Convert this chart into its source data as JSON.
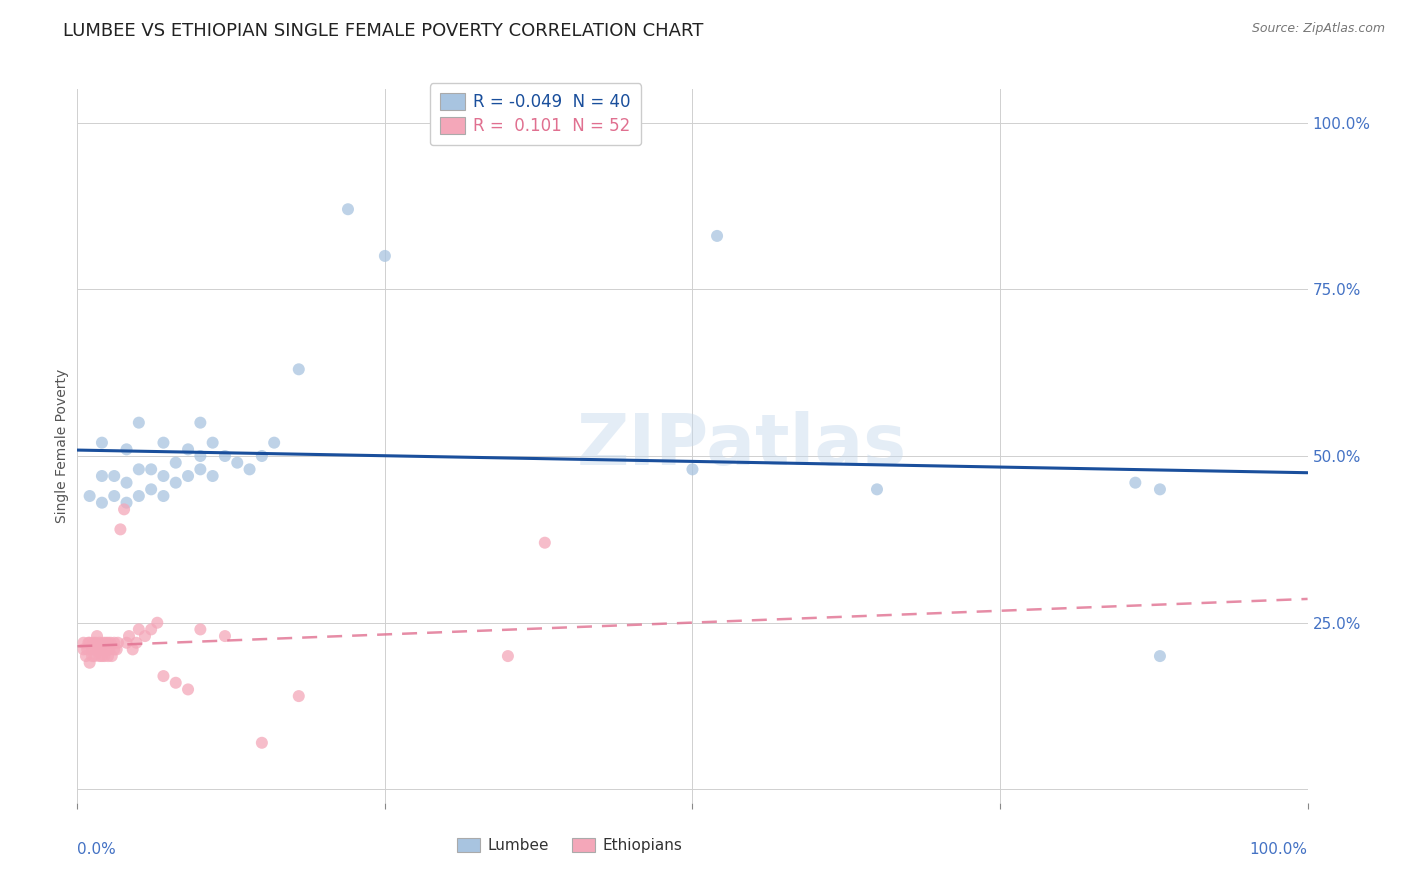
{
  "title": "LUMBEE VS ETHIOPIAN SINGLE FEMALE POVERTY CORRELATION CHART",
  "source": "Source: ZipAtlas.com",
  "ylabel": "Single Female Poverty",
  "xlim": [
    0.0,
    1.0
  ],
  "ylim": [
    -0.02,
    1.05
  ],
  "lumbee_color": "#a8c4e0",
  "ethiopian_color": "#f4a7b9",
  "lumbee_line_color": "#1a4f9c",
  "ethiopian_line_color": "#e07090",
  "background_color": "#ffffff",
  "watermark_text": "ZIPatlas",
  "legend_R_lumbee": "-0.049",
  "legend_N_lumbee": "40",
  "legend_R_ethiopian": "0.101",
  "legend_N_ethiopian": "52",
  "lumbee_x": [
    0.01,
    0.02,
    0.02,
    0.02,
    0.03,
    0.03,
    0.04,
    0.04,
    0.04,
    0.05,
    0.05,
    0.05,
    0.06,
    0.06,
    0.07,
    0.07,
    0.07,
    0.08,
    0.08,
    0.09,
    0.09,
    0.1,
    0.1,
    0.1,
    0.11,
    0.11,
    0.12,
    0.13,
    0.14,
    0.15,
    0.16,
    0.18,
    0.22,
    0.25,
    0.5,
    0.52,
    0.65,
    0.86,
    0.88,
    0.88
  ],
  "lumbee_y": [
    0.44,
    0.43,
    0.47,
    0.52,
    0.44,
    0.47,
    0.43,
    0.46,
    0.51,
    0.44,
    0.48,
    0.55,
    0.45,
    0.48,
    0.44,
    0.47,
    0.52,
    0.46,
    0.49,
    0.47,
    0.51,
    0.48,
    0.5,
    0.55,
    0.47,
    0.52,
    0.5,
    0.49,
    0.48,
    0.5,
    0.52,
    0.63,
    0.87,
    0.8,
    0.48,
    0.83,
    0.45,
    0.46,
    0.45,
    0.2
  ],
  "ethiopian_x": [
    0.005,
    0.005,
    0.007,
    0.008,
    0.009,
    0.01,
    0.01,
    0.012,
    0.012,
    0.013,
    0.014,
    0.015,
    0.015,
    0.016,
    0.017,
    0.018,
    0.018,
    0.019,
    0.02,
    0.02,
    0.021,
    0.022,
    0.022,
    0.023,
    0.025,
    0.025,
    0.026,
    0.027,
    0.028,
    0.03,
    0.03,
    0.032,
    0.033,
    0.035,
    0.038,
    0.04,
    0.042,
    0.045,
    0.048,
    0.05,
    0.055,
    0.06,
    0.065,
    0.07,
    0.08,
    0.09,
    0.1,
    0.12,
    0.15,
    0.18,
    0.35,
    0.38
  ],
  "ethiopian_y": [
    0.21,
    0.22,
    0.2,
    0.21,
    0.22,
    0.19,
    0.22,
    0.2,
    0.21,
    0.22,
    0.2,
    0.21,
    0.22,
    0.23,
    0.21,
    0.22,
    0.2,
    0.21,
    0.2,
    0.21,
    0.22,
    0.2,
    0.21,
    0.22,
    0.2,
    0.22,
    0.21,
    0.22,
    0.2,
    0.21,
    0.22,
    0.21,
    0.22,
    0.39,
    0.42,
    0.22,
    0.23,
    0.21,
    0.22,
    0.24,
    0.23,
    0.24,
    0.25,
    0.17,
    0.16,
    0.15,
    0.24,
    0.23,
    0.07,
    0.14,
    0.2,
    0.37
  ],
  "marker_size": 75,
  "marker_alpha": 0.75,
  "title_fontsize": 13,
  "label_fontsize": 10,
  "tick_fontsize": 11,
  "source_fontsize": 9,
  "y_tick_vals": [
    0.0,
    0.25,
    0.5,
    0.75,
    1.0
  ],
  "y_tick_labels": [
    "",
    "25.0%",
    "50.0%",
    "75.0%",
    "100.0%"
  ],
  "x_tick_vals": [
    0.0,
    0.25,
    0.5,
    0.75,
    1.0
  ]
}
